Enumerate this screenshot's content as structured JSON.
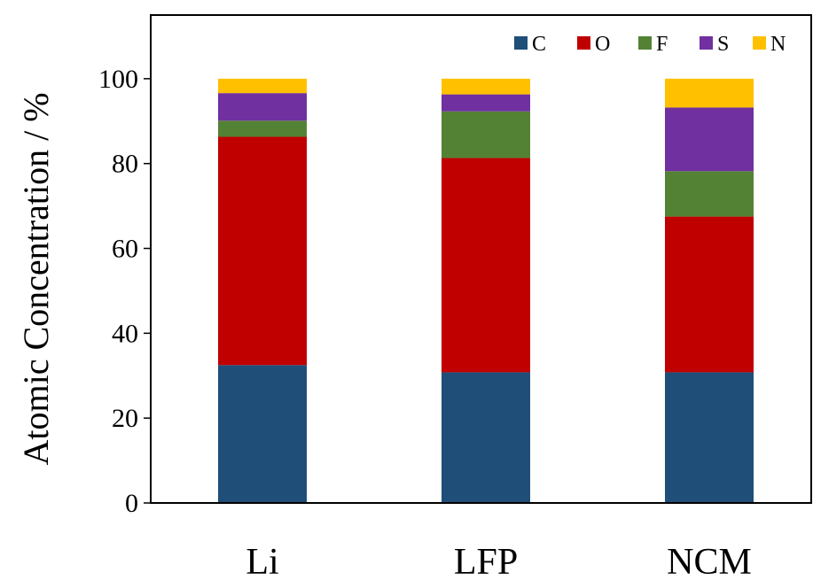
{
  "chart_data": {
    "type": "bar",
    "stacked": true,
    "categories": [
      "Li",
      "LFP",
      "NCM"
    ],
    "series": [
      {
        "name": "C",
        "color": "#1f4e79",
        "values": [
          32.5,
          30.8,
          30.8
        ]
      },
      {
        "name": "O",
        "color": "#c00000",
        "values": [
          53.8,
          50.5,
          36.7
        ]
      },
      {
        "name": "F",
        "color": "#548235",
        "values": [
          3.8,
          11.0,
          10.7
        ]
      },
      {
        "name": "S",
        "color": "#7030a0",
        "values": [
          6.5,
          4.0,
          15.0
        ]
      },
      {
        "name": "N",
        "color": "#ffc000",
        "values": [
          3.4,
          3.7,
          6.8
        ]
      }
    ],
    "ylabel": "Atomic Concentration  / %",
    "xlabel": "",
    "ylim": [
      0,
      115
    ],
    "yticks": [
      "0",
      "20",
      "40",
      "60",
      "80",
      "100"
    ],
    "grid": false,
    "legend": "top-right"
  }
}
